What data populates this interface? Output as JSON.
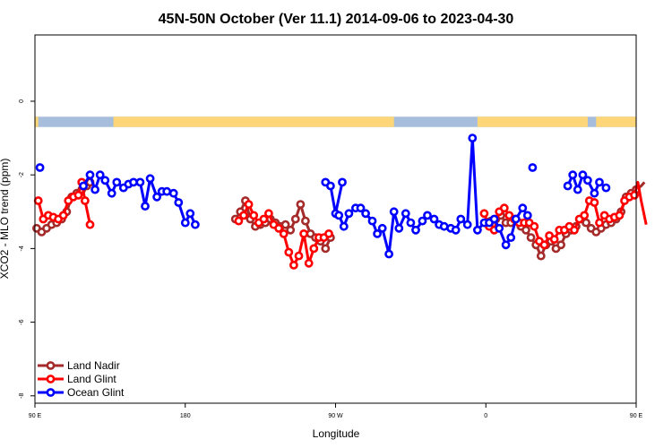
{
  "chart_data": {
    "type": "line",
    "title": "45N-50N October (Ver 11.1)   2014-09-06 to 2023-04-30",
    "xlabel": "Longitude",
    "ylabel": "XCO2 - MLO trend (ppm)",
    "xlim": [
      90,
      450
    ],
    "ylim": [
      -8.2,
      1.8
    ],
    "x_ticks": [
      {
        "value": 90,
        "label": "90 E"
      },
      {
        "value": 180,
        "label": "180"
      },
      {
        "value": 270,
        "label": "90 W"
      },
      {
        "value": 360,
        "label": "0"
      },
      {
        "value": 450,
        "label": "90 E"
      },
      {
        "value": 540,
        "label": "180"
      }
    ],
    "y_ticks": [
      {
        "value": 0,
        "label": "0"
      },
      {
        "value": -2,
        "label": "-2"
      },
      {
        "value": -4,
        "label": "-4"
      },
      {
        "value": -6,
        "label": "-6"
      },
      {
        "value": -8,
        "label": "-8"
      }
    ],
    "grid": false,
    "legend_position": "bottom-left",
    "land_ocean_strip": {
      "y_range": [
        -0.7,
        -0.42
      ],
      "ocean_color": "#a6bddb",
      "land_color": "#fcd679",
      "land_segments": [
        [
          90,
          92
        ],
        [
          137,
          305
        ],
        [
          355,
          421
        ],
        [
          426,
          518
        ],
        [
          536,
          540
        ]
      ]
    },
    "series": [
      {
        "name": "Land Nadir",
        "color": "#a52a2a",
        "segments": [
          [
            [
              91,
              -3.45
            ],
            [
              94,
              -3.55
            ],
            [
              97,
              -3.45
            ],
            [
              100,
              -3.35
            ],
            [
              103,
              -3.3
            ],
            [
              106,
              -3.2
            ],
            [
              109,
              -3.0
            ],
            [
              112,
              -2.6
            ],
            [
              115,
              -2.5
            ],
            [
              118,
              -2.4
            ],
            [
              121,
              -2.3
            ],
            [
              123,
              -2.2
            ]
          ],
          [
            [
              210,
              -3.2
            ],
            [
              213,
              -3.0
            ],
            [
              216,
              -2.7
            ],
            [
              219,
              -3.2
            ],
            [
              222,
              -3.4
            ],
            [
              225,
              -3.35
            ],
            [
              228,
              -3.3
            ],
            [
              231,
              -3.2
            ],
            [
              234,
              -3.3
            ],
            [
              237,
              -3.4
            ],
            [
              240,
              -3.35
            ],
            [
              243,
              -3.5
            ],
            [
              246,
              -3.2
            ],
            [
              249,
              -2.8
            ],
            [
              252,
              -3.25
            ],
            [
              255,
              -3.6
            ],
            [
              258,
              -3.7
            ],
            [
              261,
              -3.8
            ],
            [
              264,
              -4.0
            ],
            [
              267,
              -3.7
            ]
          ],
          [
            [
              360,
              -3.3
            ],
            [
              363,
              -3.25
            ],
            [
              366,
              -3.2
            ],
            [
              369,
              -3.1
            ],
            [
              372,
              -3.3
            ],
            [
              375,
              -3.3
            ],
            [
              378,
              -3.2
            ],
            [
              381,
              -3.4
            ],
            [
              384,
              -3.5
            ],
            [
              387,
              -3.7
            ],
            [
              390,
              -3.9
            ],
            [
              393,
              -4.2
            ],
            [
              396,
              -3.9
            ],
            [
              399,
              -3.8
            ],
            [
              402,
              -4.0
            ],
            [
              405,
              -3.9
            ],
            [
              408,
              -3.6
            ],
            [
              411,
              -3.5
            ],
            [
              414,
              -3.4
            ],
            [
              417,
              -3.2
            ],
            [
              420,
              -3.3
            ],
            [
              423,
              -3.45
            ],
            [
              426,
              -3.55
            ],
            [
              429,
              -3.45
            ],
            [
              432,
              -3.35
            ],
            [
              435,
              -3.3
            ],
            [
              438,
              -3.2
            ],
            [
              441,
              -3.0
            ],
            [
              444,
              -2.6
            ],
            [
              447,
              -2.5
            ],
            [
              450,
              -2.4
            ],
            [
              453,
              -2.3
            ],
            [
              455,
              -2.2
            ]
          ]
        ]
      },
      {
        "name": "Land Glint",
        "color": "#ff0000",
        "segments": [
          [
            [
              92,
              -2.7
            ],
            [
              95,
              -3.2
            ],
            [
              98,
              -3.1
            ],
            [
              101,
              -3.15
            ],
            [
              104,
              -3.2
            ],
            [
              107,
              -3.1
            ],
            [
              110,
              -2.7
            ],
            [
              113,
              -2.6
            ],
            [
              116,
              -2.55
            ],
            [
              118,
              -2.2
            ],
            [
              120,
              -2.7
            ],
            [
              123,
              -3.35
            ]
          ],
          [
            [
              212,
              -3.25
            ],
            [
              215,
              -3.1
            ],
            [
              218,
              -2.8
            ],
            [
              221,
              -3.1
            ],
            [
              224,
              -3.3
            ],
            [
              227,
              -3.2
            ],
            [
              230,
              -3.05
            ],
            [
              233,
              -3.35
            ],
            [
              236,
              -3.45
            ],
            [
              239,
              -3.6
            ],
            [
              242,
              -4.1
            ],
            [
              245,
              -4.45
            ],
            [
              248,
              -4.2
            ],
            [
              251,
              -3.6
            ],
            [
              254,
              -4.4
            ],
            [
              257,
              -4.0
            ],
            [
              260,
              -3.7
            ],
            [
              263,
              -3.7
            ],
            [
              266,
              -3.6
            ]
          ],
          [
            [
              359,
              -3.05
            ],
            [
              362,
              -3.4
            ],
            [
              365,
              -3.5
            ],
            [
              368,
              -3.0
            ],
            [
              371,
              -2.9
            ],
            [
              374,
              -3.1
            ],
            [
              377,
              -3.2
            ],
            [
              380,
              -3.3
            ],
            [
              383,
              -3.3
            ],
            [
              386,
              -3.3
            ],
            [
              389,
              -3.4
            ],
            [
              392,
              -3.8
            ],
            [
              395,
              -3.9
            ],
            [
              398,
              -3.65
            ],
            [
              401,
              -3.75
            ],
            [
              404,
              -3.5
            ],
            [
              407,
              -3.5
            ],
            [
              410,
              -3.4
            ],
            [
              413,
              -3.5
            ],
            [
              416,
              -3.2
            ],
            [
              419,
              -3.1
            ],
            [
              422,
              -2.7
            ],
            [
              425,
              -2.75
            ],
            [
              428,
              -3.3
            ],
            [
              431,
              -3.1
            ],
            [
              434,
              -3.2
            ],
            [
              437,
              -3.15
            ],
            [
              440,
              -3.1
            ],
            [
              443,
              -2.7
            ],
            [
              446,
              -2.6
            ],
            [
              449,
              -2.55
            ],
            [
              451,
              -2.2
            ],
            [
              453,
              -2.7
            ],
            [
              456,
              -3.35
            ]
          ]
        ]
      },
      {
        "name": "Ocean Glint",
        "color": "#0000ff",
        "segments": [
          [
            [
              93,
              -1.8
            ]
          ],
          [
            [
              119,
              -2.3
            ],
            [
              123,
              -2.0
            ],
            [
              126,
              -2.4
            ],
            [
              129,
              -2.0
            ],
            [
              132,
              -2.15
            ],
            [
              136,
              -2.5
            ],
            [
              139,
              -2.2
            ],
            [
              143,
              -2.35
            ],
            [
              146,
              -2.25
            ],
            [
              149,
              -2.2
            ],
            [
              153,
              -2.2
            ],
            [
              156,
              -2.85
            ],
            [
              159,
              -2.1
            ],
            [
              163,
              -2.6
            ],
            [
              166,
              -2.45
            ],
            [
              169,
              -2.45
            ],
            [
              173,
              -2.5
            ],
            [
              176,
              -2.75
            ],
            [
              180,
              -3.3
            ],
            [
              183,
              -3.05
            ],
            [
              186,
              -3.35
            ]
          ],
          [
            [
              264,
              -2.2
            ],
            [
              267,
              -2.3
            ],
            [
              270,
              -3.05
            ],
            [
              274,
              -2.2
            ]
          ],
          [
            [
              272,
              -3.1
            ],
            [
              275,
              -3.4
            ],
            [
              278,
              -3.05
            ],
            [
              282,
              -2.9
            ],
            [
              285,
              -2.9
            ],
            [
              288,
              -3.05
            ],
            [
              292,
              -3.25
            ],
            [
              295,
              -3.6
            ],
            [
              298,
              -3.45
            ],
            [
              302,
              -4.15
            ],
            [
              305,
              -3.0
            ],
            [
              308,
              -3.45
            ],
            [
              312,
              -3.05
            ],
            [
              315,
              -3.3
            ],
            [
              318,
              -3.5
            ],
            [
              322,
              -3.25
            ],
            [
              325,
              -3.1
            ],
            [
              329,
              -3.2
            ],
            [
              332,
              -3.35
            ],
            [
              335,
              -3.4
            ],
            [
              339,
              -3.45
            ],
            [
              342,
              -3.5
            ],
            [
              345,
              -3.2
            ],
            [
              349,
              -3.35
            ],
            [
              352,
              -1.0
            ],
            [
              355,
              -3.5
            ],
            [
              359,
              -3.3
            ],
            [
              362,
              -3.3
            ],
            [
              365,
              -3.2
            ],
            [
              368,
              -3.45
            ],
            [
              372,
              -3.9
            ],
            [
              375,
              -3.7
            ],
            [
              378,
              -3.2
            ],
            [
              382,
              -2.9
            ],
            [
              385,
              -3.1
            ]
          ],
          [
            [
              388,
              -1.8
            ]
          ],
          [
            [
              409,
              -2.3
            ],
            [
              412,
              -2.0
            ],
            [
              415,
              -2.4
            ],
            [
              418,
              -2.0
            ],
            [
              421,
              -2.15
            ],
            [
              425,
              -2.5
            ],
            [
              428,
              -2.2
            ],
            [
              432,
              -2.35
            ]
          ]
        ]
      }
    ]
  }
}
